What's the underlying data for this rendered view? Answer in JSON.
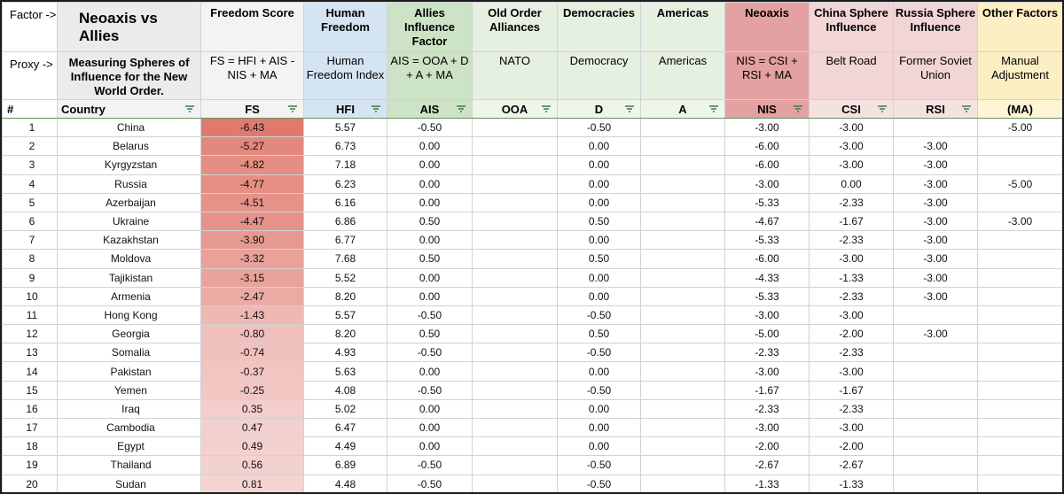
{
  "sheet": {
    "row_labels": {
      "factor": "Factor ->",
      "proxy": "Proxy ->",
      "index": "#"
    },
    "title": "Neoaxis vs Allies",
    "subtitle": "Measuring Spheres of Influence for the New World Order.",
    "columns": [
      {
        "key": "fs",
        "factor": "Freedom Score",
        "proxy": "FS = HFI + AIS - NIS + MA",
        "header": "FS"
      },
      {
        "key": "hfi",
        "factor": "Human Freedom",
        "proxy": "Human Freedom Index",
        "header": "HFI"
      },
      {
        "key": "ais",
        "factor": "Allies Influence Factor",
        "proxy": "AIS = OOA + D + A + MA",
        "header": "AIS"
      },
      {
        "key": "ooa",
        "factor": "Old Order Alliances",
        "proxy": "NATO",
        "header": "OOA"
      },
      {
        "key": "d",
        "factor": "Democracies",
        "proxy": "Democracy",
        "header": "D"
      },
      {
        "key": "a",
        "factor": "Americas",
        "proxy": "Americas",
        "header": "A"
      },
      {
        "key": "nis",
        "factor": "Neoaxis",
        "proxy": "NIS = CSI + RSI + MA",
        "header": "NIS"
      },
      {
        "key": "csi",
        "factor": "China Sphere Influence",
        "proxy": "Belt Road",
        "header": "CSI"
      },
      {
        "key": "rsi",
        "factor": "Russia Sphere Influence",
        "proxy": "Former Soviet Union",
        "header": "RSI"
      },
      {
        "key": "ma",
        "factor": "Other Factors",
        "proxy": "Manual Adjustment",
        "header": "(MA)"
      }
    ],
    "country_header": "Country",
    "icons": {
      "filter": "filter-icon"
    },
    "colors": {
      "fs_scale_high": "#e07a6e",
      "fs_scale_low": "#f4d4d2",
      "frame": "#6a8f5f"
    },
    "rows": [
      {
        "n": "1",
        "country": "China",
        "fs": "-6.43",
        "hfi": "5.57",
        "ais": "-0.50",
        "ooa": "",
        "d": "-0.50",
        "a": "",
        "nis": "-3.00",
        "csi": "-3.00",
        "rsi": "",
        "ma": "-5.00"
      },
      {
        "n": "2",
        "country": "Belarus",
        "fs": "-5.27",
        "hfi": "6.73",
        "ais": "0.00",
        "ooa": "",
        "d": "0.00",
        "a": "",
        "nis": "-6.00",
        "csi": "-3.00",
        "rsi": "-3.00",
        "ma": ""
      },
      {
        "n": "3",
        "country": "Kyrgyzstan",
        "fs": "-4.82",
        "hfi": "7.18",
        "ais": "0.00",
        "ooa": "",
        "d": "0.00",
        "a": "",
        "nis": "-6.00",
        "csi": "-3.00",
        "rsi": "-3.00",
        "ma": ""
      },
      {
        "n": "4",
        "country": "Russia",
        "fs": "-4.77",
        "hfi": "6.23",
        "ais": "0.00",
        "ooa": "",
        "d": "0.00",
        "a": "",
        "nis": "-3.00",
        "csi": "0.00",
        "rsi": "-3.00",
        "ma": "-5.00"
      },
      {
        "n": "5",
        "country": "Azerbaijan",
        "fs": "-4.51",
        "hfi": "6.16",
        "ais": "0.00",
        "ooa": "",
        "d": "0.00",
        "a": "",
        "nis": "-5.33",
        "csi": "-2.33",
        "rsi": "-3.00",
        "ma": ""
      },
      {
        "n": "6",
        "country": "Ukraine",
        "fs": "-4.47",
        "hfi": "6.86",
        "ais": "0.50",
        "ooa": "",
        "d": "0.50",
        "a": "",
        "nis": "-4.67",
        "csi": "-1.67",
        "rsi": "-3.00",
        "ma": "-3.00"
      },
      {
        "n": "7",
        "country": "Kazakhstan",
        "fs": "-3.90",
        "hfi": "6.77",
        "ais": "0.00",
        "ooa": "",
        "d": "0.00",
        "a": "",
        "nis": "-5.33",
        "csi": "-2.33",
        "rsi": "-3.00",
        "ma": ""
      },
      {
        "n": "8",
        "country": "Moldova",
        "fs": "-3.32",
        "hfi": "7.68",
        "ais": "0.50",
        "ooa": "",
        "d": "0.50",
        "a": "",
        "nis": "-6.00",
        "csi": "-3.00",
        "rsi": "-3.00",
        "ma": ""
      },
      {
        "n": "9",
        "country": "Tajikistan",
        "fs": "-3.15",
        "hfi": "5.52",
        "ais": "0.00",
        "ooa": "",
        "d": "0.00",
        "a": "",
        "nis": "-4.33",
        "csi": "-1.33",
        "rsi": "-3.00",
        "ma": ""
      },
      {
        "n": "10",
        "country": "Armenia",
        "fs": "-2.47",
        "hfi": "8.20",
        "ais": "0.00",
        "ooa": "",
        "d": "0.00",
        "a": "",
        "nis": "-5.33",
        "csi": "-2.33",
        "rsi": "-3.00",
        "ma": ""
      },
      {
        "n": "11",
        "country": "Hong Kong",
        "fs": "-1.43",
        "hfi": "5.57",
        "ais": "-0.50",
        "ooa": "",
        "d": "-0.50",
        "a": "",
        "nis": "-3.00",
        "csi": "-3.00",
        "rsi": "",
        "ma": ""
      },
      {
        "n": "12",
        "country": "Georgia",
        "fs": "-0.80",
        "hfi": "8.20",
        "ais": "0.50",
        "ooa": "",
        "d": "0.50",
        "a": "",
        "nis": "-5.00",
        "csi": "-2.00",
        "rsi": "-3.00",
        "ma": ""
      },
      {
        "n": "13",
        "country": "Somalia",
        "fs": "-0.74",
        "hfi": "4.93",
        "ais": "-0.50",
        "ooa": "",
        "d": "-0.50",
        "a": "",
        "nis": "-2.33",
        "csi": "-2.33",
        "rsi": "",
        "ma": ""
      },
      {
        "n": "14",
        "country": "Pakistan",
        "fs": "-0.37",
        "hfi": "5.63",
        "ais": "0.00",
        "ooa": "",
        "d": "0.00",
        "a": "",
        "nis": "-3.00",
        "csi": "-3.00",
        "rsi": "",
        "ma": ""
      },
      {
        "n": "15",
        "country": "Yemen",
        "fs": "-0.25",
        "hfi": "4.08",
        "ais": "-0.50",
        "ooa": "",
        "d": "-0.50",
        "a": "",
        "nis": "-1.67",
        "csi": "-1.67",
        "rsi": "",
        "ma": ""
      },
      {
        "n": "16",
        "country": "Iraq",
        "fs": "0.35",
        "hfi": "5.02",
        "ais": "0.00",
        "ooa": "",
        "d": "0.00",
        "a": "",
        "nis": "-2.33",
        "csi": "-2.33",
        "rsi": "",
        "ma": ""
      },
      {
        "n": "17",
        "country": "Cambodia",
        "fs": "0.47",
        "hfi": "6.47",
        "ais": "0.00",
        "ooa": "",
        "d": "0.00",
        "a": "",
        "nis": "-3.00",
        "csi": "-3.00",
        "rsi": "",
        "ma": ""
      },
      {
        "n": "18",
        "country": "Egypt",
        "fs": "0.49",
        "hfi": "4.49",
        "ais": "0.00",
        "ooa": "",
        "d": "0.00",
        "a": "",
        "nis": "-2.00",
        "csi": "-2.00",
        "rsi": "",
        "ma": ""
      },
      {
        "n": "19",
        "country": "Thailand",
        "fs": "0.56",
        "hfi": "6.89",
        "ais": "-0.50",
        "ooa": "",
        "d": "-0.50",
        "a": "",
        "nis": "-2.67",
        "csi": "-2.67",
        "rsi": "",
        "ma": ""
      },
      {
        "n": "20",
        "country": "Sudan",
        "fs": "0.81",
        "hfi": "4.48",
        "ais": "-0.50",
        "ooa": "",
        "d": "-0.50",
        "a": "",
        "nis": "-1.33",
        "csi": "-1.33",
        "rsi": "",
        "ma": ""
      }
    ]
  }
}
